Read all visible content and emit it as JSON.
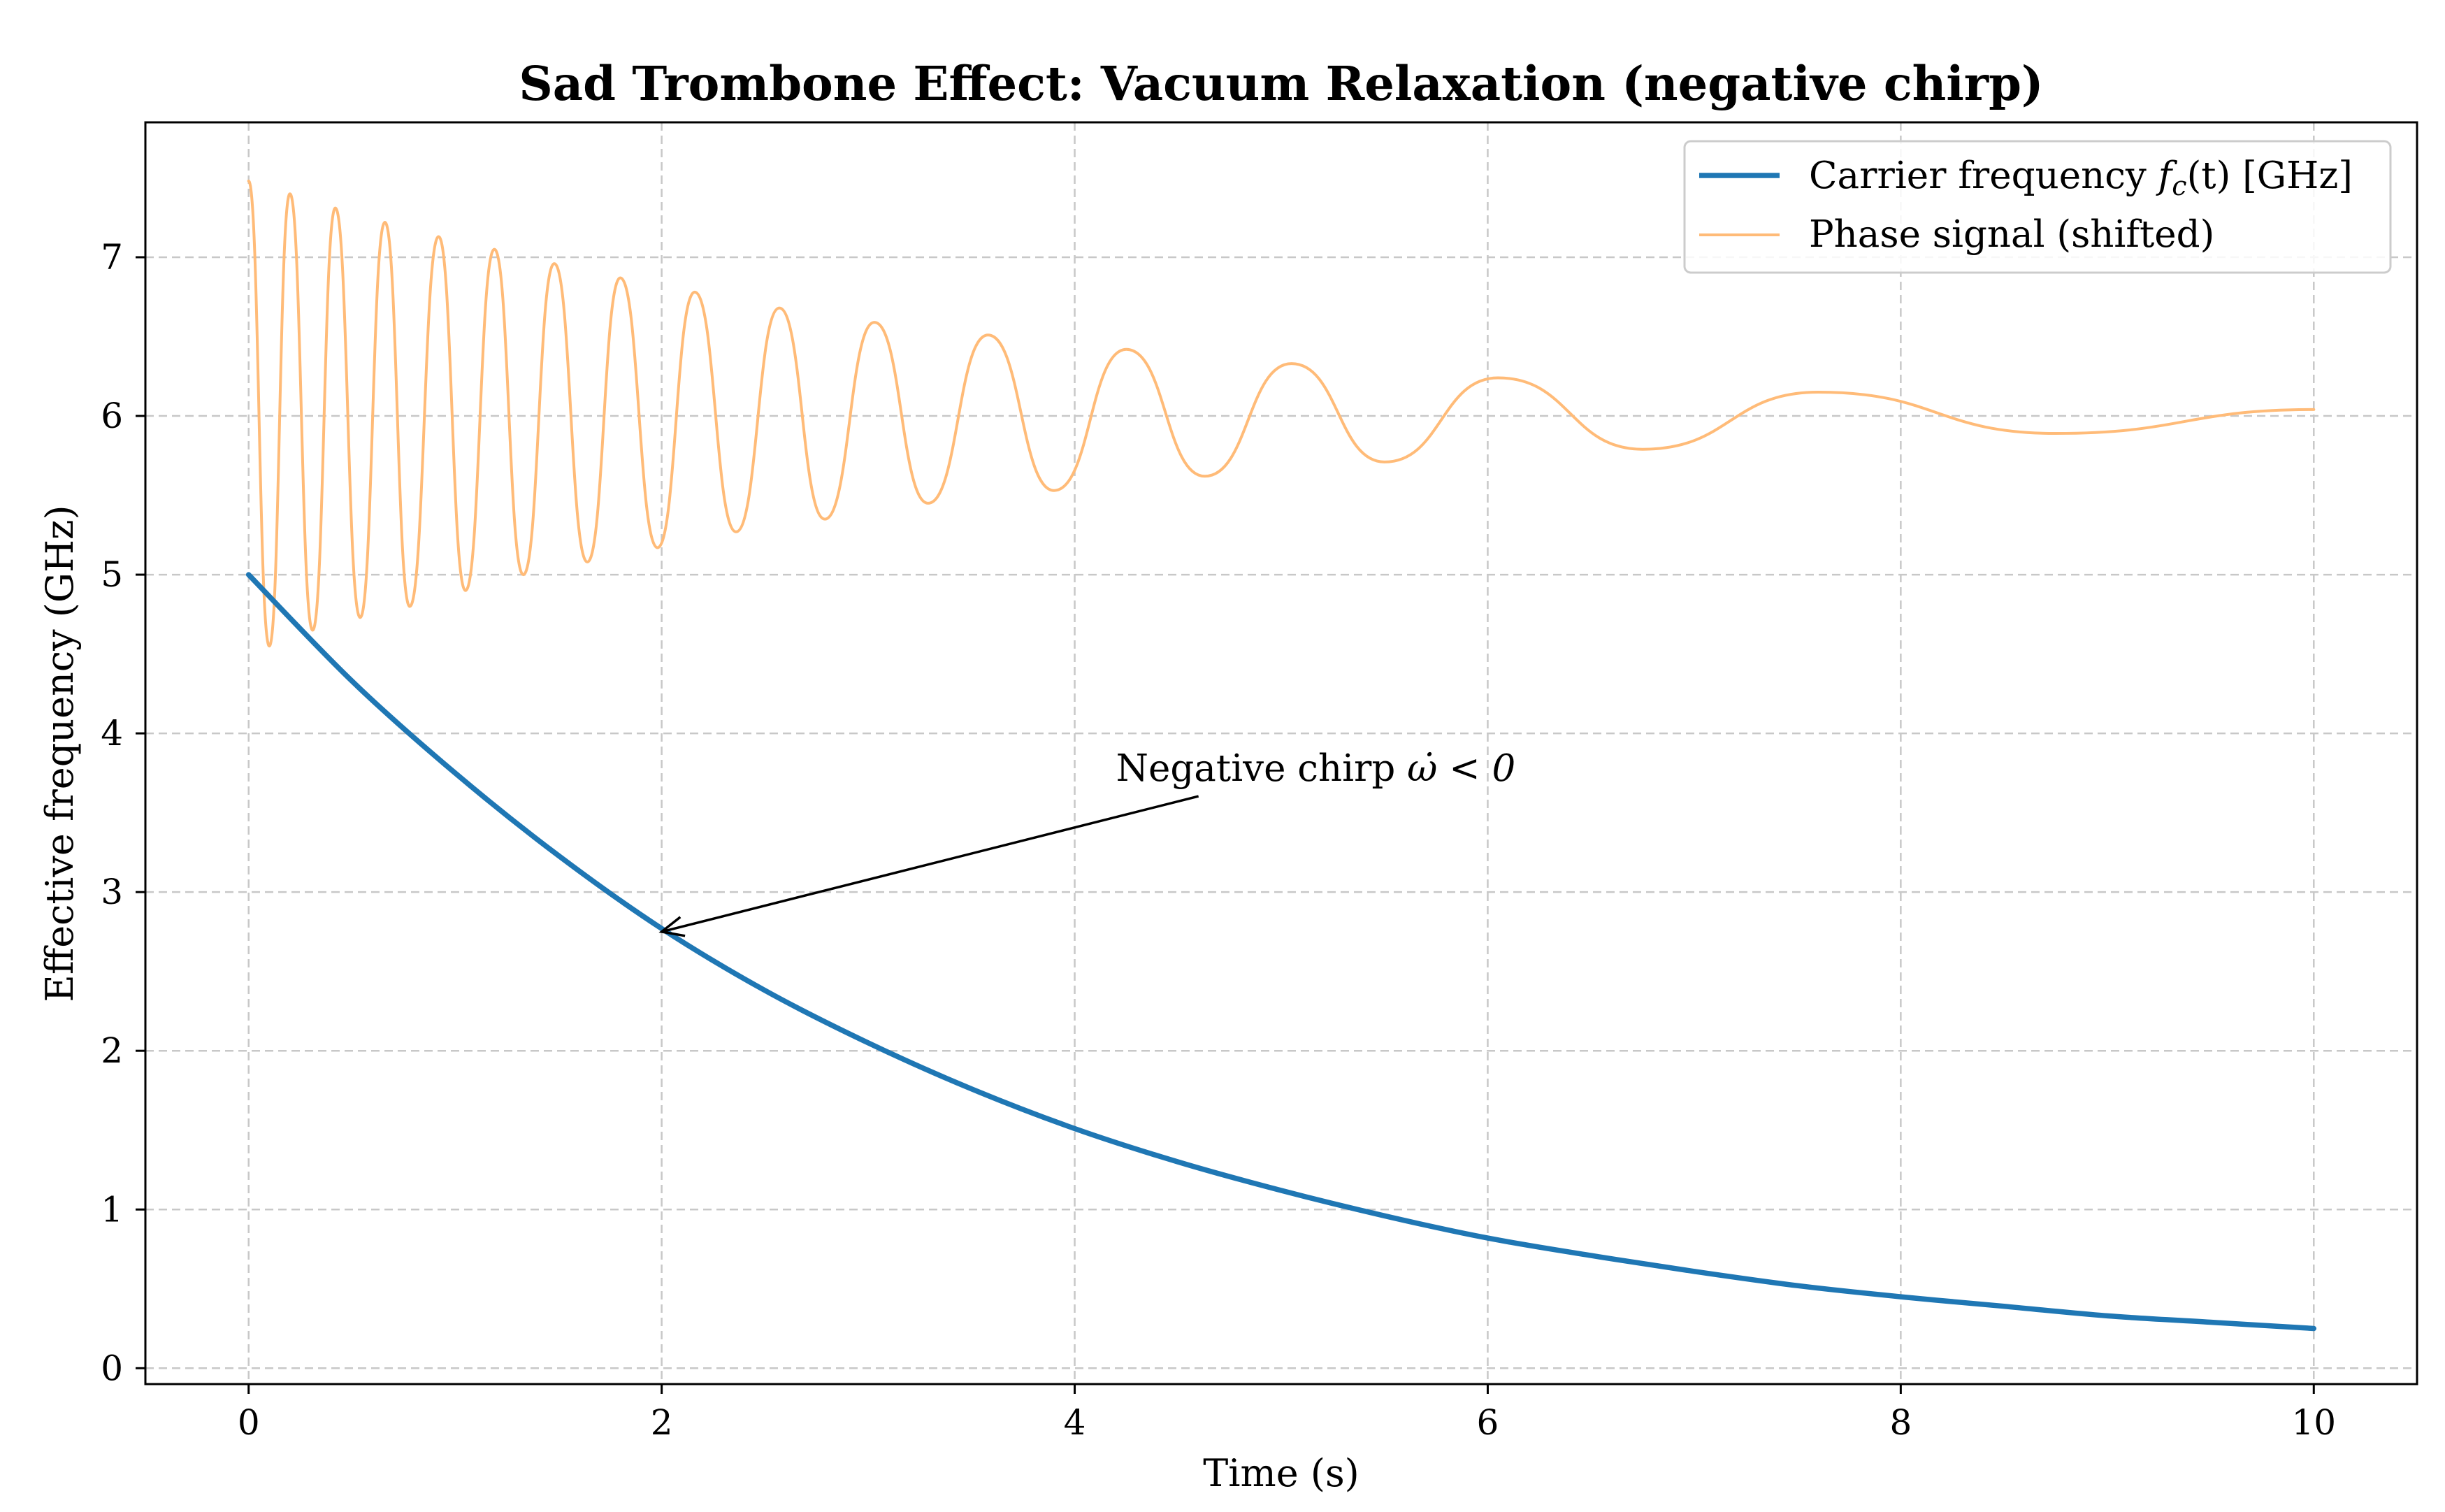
{
  "chart_data": {
    "type": "line",
    "title": "Sad Trombone Effect: Vacuum Relaxation (negative chirp)",
    "xlabel": "Time (s)",
    "ylabel": "Effective frequency (GHz)",
    "xlim": [
      -0.5,
      10.5
    ],
    "ylim": [
      -0.1,
      7.85
    ],
    "xticks": [
      0,
      2,
      4,
      6,
      8,
      10
    ],
    "yticks": [
      0,
      1,
      2,
      3,
      4,
      5,
      6,
      7
    ],
    "grid": true,
    "legend_position": "top-right",
    "series": [
      {
        "name": "Carrier frequency f_c(t) [GHz]",
        "legend_base": "Carrier frequency ",
        "legend_math": "f",
        "legend_sub": "c",
        "legend_tail": "(t) [GHz]",
        "color": "#1f77b4",
        "x": [
          0,
          0.5,
          1,
          1.5,
          2,
          2.5,
          3,
          3.5,
          4,
          4.5,
          5,
          5.5,
          6,
          6.5,
          7,
          7.5,
          8,
          8.5,
          9,
          9.5,
          10
        ],
        "values": [
          5.0,
          4.33,
          3.75,
          3.23,
          2.77,
          2.38,
          2.05,
          1.76,
          1.51,
          1.3,
          1.12,
          0.96,
          0.82,
          0.71,
          0.61,
          0.52,
          0.45,
          0.39,
          0.33,
          0.29,
          0.25
        ]
      },
      {
        "name": "Phase signal (shifted)",
        "color": "#ffbb78",
        "x": [
          0,
          0.1,
          0.2,
          0.31,
          0.42,
          0.54,
          0.66,
          0.78,
          0.92,
          1.05,
          1.19,
          1.33,
          1.48,
          1.64,
          1.8,
          1.98,
          2.16,
          2.36,
          2.57,
          2.79,
          3.03,
          3.29,
          3.58,
          3.9,
          4.25,
          4.63,
          5.05,
          5.5,
          6.05,
          6.75,
          7.6,
          8.75,
          10
        ],
        "values": [
          7.48,
          4.55,
          7.4,
          4.65,
          7.31,
          4.73,
          7.22,
          4.8,
          7.13,
          4.9,
          7.05,
          5.0,
          6.96,
          5.08,
          6.87,
          5.17,
          6.78,
          5.27,
          6.68,
          5.35,
          6.59,
          5.45,
          6.51,
          5.53,
          6.42,
          5.62,
          6.33,
          5.71,
          6.24,
          5.79,
          6.15,
          5.89,
          6.04
        ]
      }
    ],
    "annotations": [
      {
        "text": "Negative chirp ",
        "math": "ω̇ < 0",
        "text_xy": [
          4.2,
          3.78
        ],
        "arrow_to": [
          2.0,
          2.75
        ]
      }
    ]
  }
}
